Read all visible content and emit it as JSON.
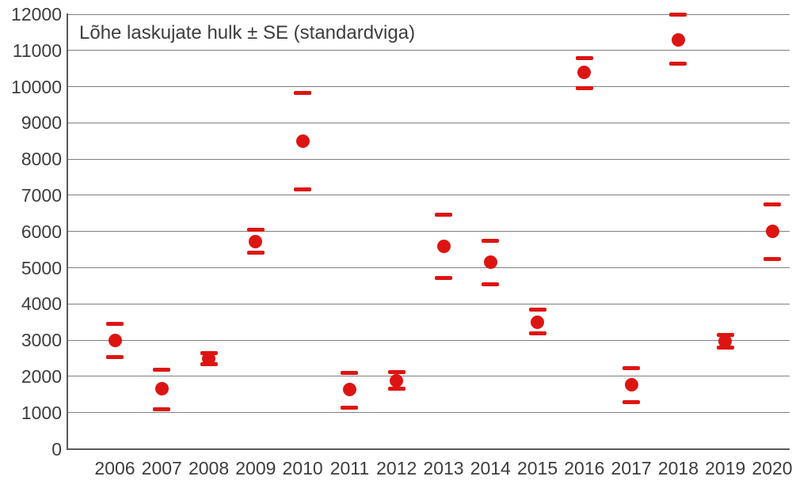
{
  "chart_data": {
    "type": "scatter",
    "title": "Lõhe laskujate hulk ± SE (standardviga)",
    "xlabel": "",
    "ylabel": "",
    "ylim": [
      0,
      12000
    ],
    "ytick_step": 1000,
    "grid": true,
    "legend_position": "none",
    "marker_color": "#dd1512",
    "x": [
      2006,
      2007,
      2008,
      2009,
      2010,
      2011,
      2012,
      2013,
      2014,
      2015,
      2016,
      2017,
      2018,
      2019,
      2020
    ],
    "series": [
      {
        "name": "Lõhe laskujate hulk",
        "values": [
          2990,
          1650,
          2490,
          5720,
          8500,
          1640,
          1880,
          5580,
          5150,
          3500,
          10390,
          1760,
          11290,
          2970,
          6000
        ],
        "upper_se": [
          3440,
          2180,
          2640,
          6060,
          9820,
          2090,
          2110,
          6460,
          5740,
          3840,
          10790,
          2230,
          12000,
          3140,
          6750
        ],
        "lower_se": [
          2530,
          1090,
          2330,
          5410,
          7160,
          1130,
          1660,
          4710,
          4550,
          3190,
          9960,
          1290,
          10630,
          2790,
          5240
        ]
      }
    ],
    "colors": {
      "gridline": "#7f7f7f",
      "axis": "#595959",
      "text": "#3d3d3d",
      "background": "#ffffff"
    }
  }
}
